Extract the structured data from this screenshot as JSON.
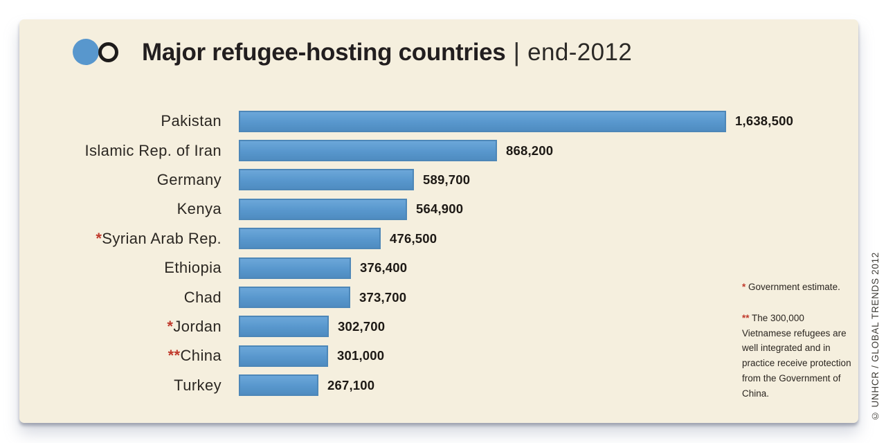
{
  "header": {
    "title_bold": "Major refugee-hosting countries",
    "separator": "|",
    "title_light": "end-2012"
  },
  "chart_data": {
    "type": "bar",
    "orientation": "horizontal",
    "title": "Major refugee-hosting countries | end-2012",
    "xlabel": "",
    "ylabel": "",
    "xlim": [
      0,
      1700000
    ],
    "grid": false,
    "legend": "none",
    "bar_color": "#5897cd",
    "categories": [
      "Pakistan",
      "Islamic Rep. of Iran",
      "Germany",
      "Kenya",
      "Syrian Arab Rep.",
      "Ethiopia",
      "Chad",
      "Jordan",
      "China",
      "Turkey"
    ],
    "asterisks": [
      "",
      "",
      "",
      "",
      "*",
      "",
      "",
      "*",
      "**",
      ""
    ],
    "values": [
      1638500,
      868200,
      589700,
      564900,
      476500,
      376400,
      373700,
      302700,
      301000,
      267100
    ],
    "value_labels": [
      "1,638,500",
      "868,200",
      "589,700",
      "564,900",
      "476,500",
      "376,400",
      "373,700",
      "302,700",
      "301,000",
      "267,100"
    ]
  },
  "footnotes": {
    "note1_star": "*",
    "note1_text": " Government estimate.",
    "note2_star": "**",
    "note2_text": " The 300,000 Vietnamese refugees are well integrated and in practice receive protection from the Government of China."
  },
  "copyright": "© UNHCR / GLOBAL TRENDS 2012",
  "colors": {
    "card_background": "#f5efde",
    "bar_blue": "#5897cd",
    "asterisk_red": "#c0392b",
    "title_dark": "#221e1f",
    "page_background": "#ffffff"
  }
}
